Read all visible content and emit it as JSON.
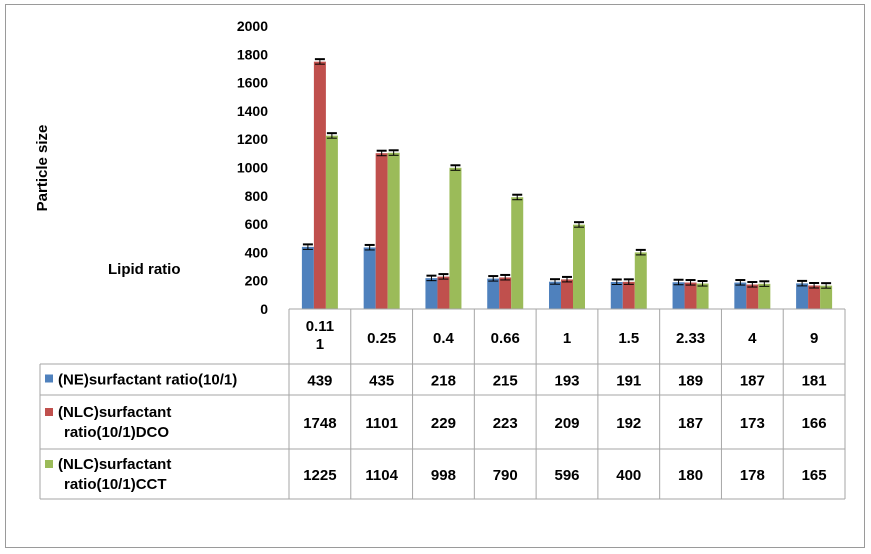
{
  "chart_data": {
    "type": "bar",
    "ylabel": "Particle size",
    "xlabel": "Lipid ratio",
    "ylim": [
      0,
      2000
    ],
    "yticks": [
      "0",
      "200",
      "400",
      "600",
      "800",
      "1000",
      "1200",
      "1400",
      "1600",
      "1800",
      "2000"
    ],
    "categories": [
      "0.11 1",
      "0.25",
      "0.4",
      "0.66",
      "1",
      "1.5",
      "2.33",
      "4",
      "9"
    ],
    "series": [
      {
        "name": "(NE)surfactant ratio(10/1)",
        "color": "#4f81bd",
        "values": [
          439,
          435,
          218,
          215,
          193,
          191,
          189,
          187,
          181
        ],
        "labels": [
          "439",
          "435",
          "218",
          "215",
          "193",
          "191",
          "189",
          "187",
          "181"
        ]
      },
      {
        "name": "(NLC)surfactant ratio(10/1)DCO",
        "color": "#c0504d",
        "values": [
          1748,
          1101,
          229,
          223,
          209,
          192,
          187,
          173,
          166
        ],
        "labels": [
          "1748",
          "1101",
          "229",
          "223",
          "209",
          "192",
          "187",
          "173",
          "166"
        ]
      },
      {
        "name": "(NLC)surfactant ratio(10/1)CCT",
        "color": "#9bbb59",
        "values": [
          1225,
          1104,
          998,
          790,
          596,
          400,
          180,
          178,
          165
        ],
        "labels": [
          "1225",
          "1104",
          "998",
          "790",
          "596",
          "400",
          "180",
          "178",
          "165"
        ]
      }
    ],
    "data_table": true,
    "grid": false,
    "error_bars": true
  }
}
